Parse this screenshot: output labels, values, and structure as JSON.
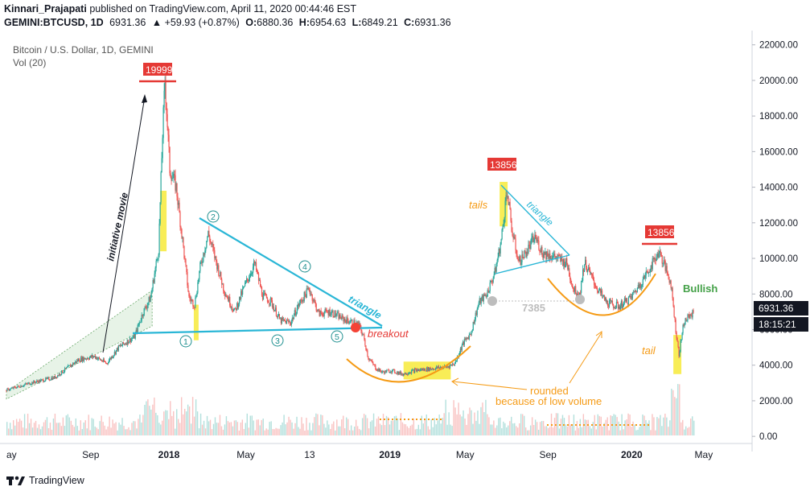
{
  "header": {
    "line1_author": "Kinnari_Prajapati",
    "line1_rest": "published on TradingView.com, April 11, 2020 00:44:46 EST",
    "symbol": "GEMINI:BTCUSD, 1D",
    "last": "6931.36",
    "change": "▲ +59.93 (+0.87%)",
    "o_label": "O:",
    "o": "6880.36",
    "h_label": "H:",
    "h": "6954.63",
    "l_label": "L:",
    "l": "6849.21",
    "c_label": "C:",
    "c": "6931.36"
  },
  "legend": {
    "title": "Bitcoin / U.S. Dollar, 1D, GEMINI",
    "vol": "Vol (20)"
  },
  "footer": {
    "brand": "TradingView"
  },
  "colors": {
    "up": "#26a69a",
    "down": "#ef5350",
    "cyan": "#29b6d6",
    "orange": "#f59b16",
    "yellow": "#f7ea3a",
    "red": "#e53935",
    "green_text": "#43a047",
    "axis": "#787b86"
  },
  "chart_data": {
    "type": "candlestick",
    "y_axis_ticks": [
      "22000.00",
      "20000.00",
      "18000.00",
      "16000.00",
      "14000.00",
      "12000.00",
      "10000.00",
      "8000.00",
      "6000.00",
      "4000.00",
      "2000.00",
      "0.00"
    ],
    "y_ticks_values": [
      22000,
      20000,
      18000,
      16000,
      14000,
      12000,
      10000,
      8000,
      6000,
      4000,
      2000,
      0
    ],
    "ylim": [
      -400,
      22800
    ],
    "x_axis_ticks": [
      "ay",
      "Sep",
      "2018",
      "May",
      "13",
      "2019",
      "May",
      "Sep",
      "2020",
      "May"
    ],
    "price_series": [
      [
        0,
        2600
      ],
      [
        30,
        3000
      ],
      [
        60,
        3300
      ],
      [
        90,
        4300
      ],
      [
        110,
        4500
      ],
      [
        125,
        4100
      ],
      [
        140,
        5000
      ],
      [
        160,
        5600
      ],
      [
        170,
        6900
      ],
      [
        180,
        7800
      ],
      [
        190,
        10500
      ],
      [
        195,
        17000
      ],
      [
        198,
        19999
      ],
      [
        204,
        15000
      ],
      [
        212,
        14000
      ],
      [
        220,
        11000
      ],
      [
        228,
        7800
      ],
      [
        235,
        7400
      ],
      [
        242,
        9500
      ],
      [
        252,
        11400
      ],
      [
        262,
        9800
      ],
      [
        272,
        8200
      ],
      [
        285,
        7000
      ],
      [
        298,
        8500
      ],
      [
        310,
        9700
      ],
      [
        320,
        7900
      ],
      [
        330,
        7600
      ],
      [
        342,
        6500
      ],
      [
        355,
        6400
      ],
      [
        365,
        7400
      ],
      [
        378,
        8300
      ],
      [
        390,
        6900
      ],
      [
        405,
        7000
      ],
      [
        420,
        6600
      ],
      [
        432,
        6400
      ],
      [
        440,
        6300
      ],
      [
        446,
        5600
      ],
      [
        452,
        4400
      ],
      [
        462,
        3800
      ],
      [
        470,
        3600
      ],
      [
        480,
        3700
      ],
      [
        495,
        3500
      ],
      [
        510,
        3700
      ],
      [
        530,
        3800
      ],
      [
        550,
        3900
      ],
      [
        560,
        4100
      ],
      [
        570,
        5200
      ],
      [
        580,
        5800
      ],
      [
        590,
        7500
      ],
      [
        600,
        8000
      ],
      [
        610,
        9200
      ],
      [
        618,
        11000
      ],
      [
        625,
        13856
      ],
      [
        632,
        11400
      ],
      [
        640,
        9800
      ],
      [
        650,
        10400
      ],
      [
        660,
        11200
      ],
      [
        670,
        10300
      ],
      [
        685,
        10100
      ],
      [
        700,
        9700
      ],
      [
        708,
        8300
      ],
      [
        716,
        8000
      ],
      [
        722,
        9800
      ],
      [
        728,
        9200
      ],
      [
        738,
        8300
      ],
      [
        750,
        7500
      ],
      [
        765,
        7300
      ],
      [
        780,
        7800
      ],
      [
        795,
        8800
      ],
      [
        808,
        9800
      ],
      [
        815,
        10400
      ],
      [
        822,
        9600
      ],
      [
        830,
        8600
      ],
      [
        836,
        6000
      ],
      [
        840,
        4600
      ],
      [
        846,
        6400
      ],
      [
        852,
        6700
      ],
      [
        858,
        6931
      ]
    ],
    "annotations": {
      "ath_label": "19999",
      "peak2_label": "13856",
      "peak3_label": "13856",
      "initiative": "initiative movie",
      "triangle1": "triangle",
      "triangle2": "triangle",
      "breakout": "breakout",
      "tails": "tails",
      "tail": "tail",
      "rounded1": "rounded",
      "rounded2": "because of low volume",
      "support": "7385",
      "bullish": "Bullish",
      "points": [
        "1",
        "2",
        "3",
        "4",
        "5"
      ],
      "last_price": "6931.36",
      "countdown": "18:15:21"
    }
  }
}
